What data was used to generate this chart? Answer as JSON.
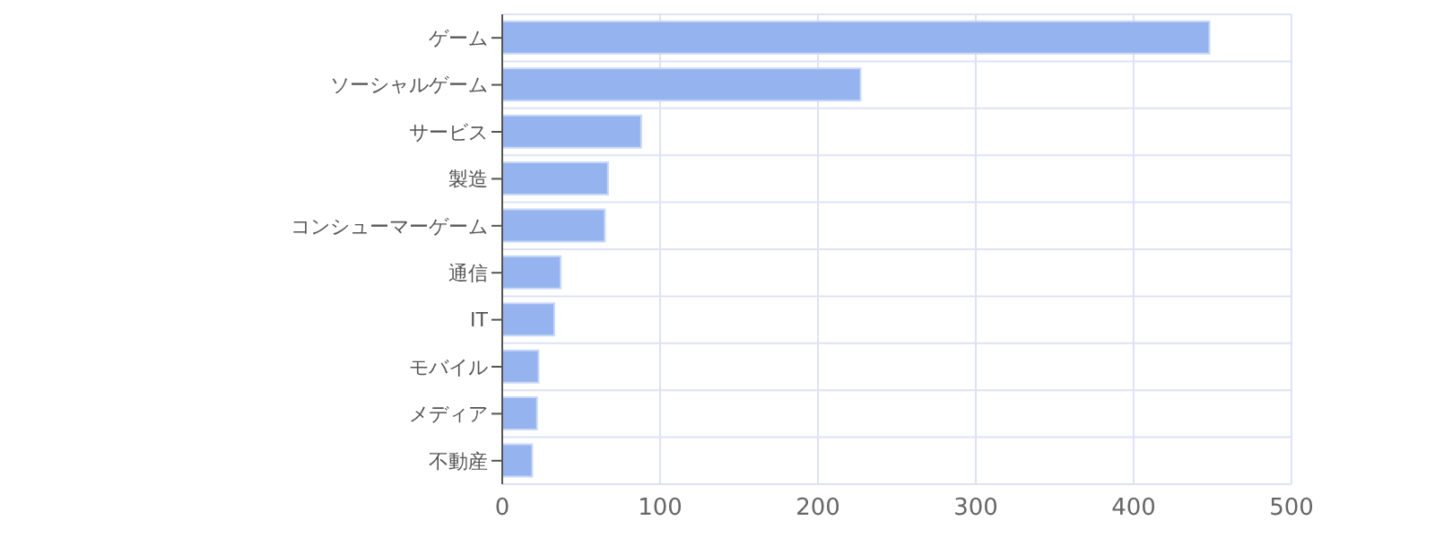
{
  "chart_data": {
    "type": "bar",
    "orientation": "horizontal",
    "categories": [
      "ゲーム",
      "ソーシャルゲーム",
      "サービス",
      "製造",
      "コンシューマーゲーム",
      "通信",
      "IT",
      "モバイル",
      "メディア",
      "不動産"
    ],
    "values": [
      448,
      227,
      88,
      67,
      65,
      37,
      33,
      23,
      22,
      19
    ],
    "color": "#8fb0ee",
    "xlim": [
      0,
      500
    ],
    "xticks": [
      0,
      100,
      200,
      300,
      400,
      500
    ],
    "grid": true
  }
}
